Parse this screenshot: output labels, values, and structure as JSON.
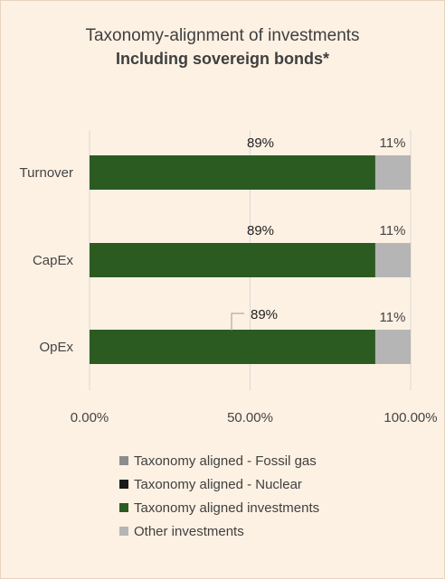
{
  "chart_data": {
    "type": "bar",
    "orientation": "horizontal",
    "stacked": true,
    "title": "Taxonomy-alignment of investments",
    "subtitle": "Including sovereign bonds*",
    "categories": [
      "Turnover",
      "CapEx",
      "OpEx"
    ],
    "series": [
      {
        "name": "Taxonomy aligned - Fossil gas",
        "values": [
          0,
          0,
          0
        ],
        "color": "#8c8c8c"
      },
      {
        "name": "Taxonomy aligned - Nuclear",
        "values": [
          0,
          0,
          0
        ],
        "color": "#1a1a1a"
      },
      {
        "name": "Taxonomy aligned investments",
        "values": [
          89,
          89,
          89
        ],
        "color": "#2b5b21",
        "labels": [
          "89%",
          "89%",
          "89%"
        ]
      },
      {
        "name": "Other investments",
        "values": [
          11,
          11,
          11
        ],
        "color": "#b5b5b5",
        "labels": [
          "11%",
          "11%",
          "11%"
        ]
      }
    ],
    "xlim": [
      0,
      100
    ],
    "xticks": [
      "0.00%",
      "50.00%",
      "100.00%"
    ],
    "xlabel": "",
    "ylabel": "",
    "grid": "vertical",
    "legend_position": "bottom"
  }
}
